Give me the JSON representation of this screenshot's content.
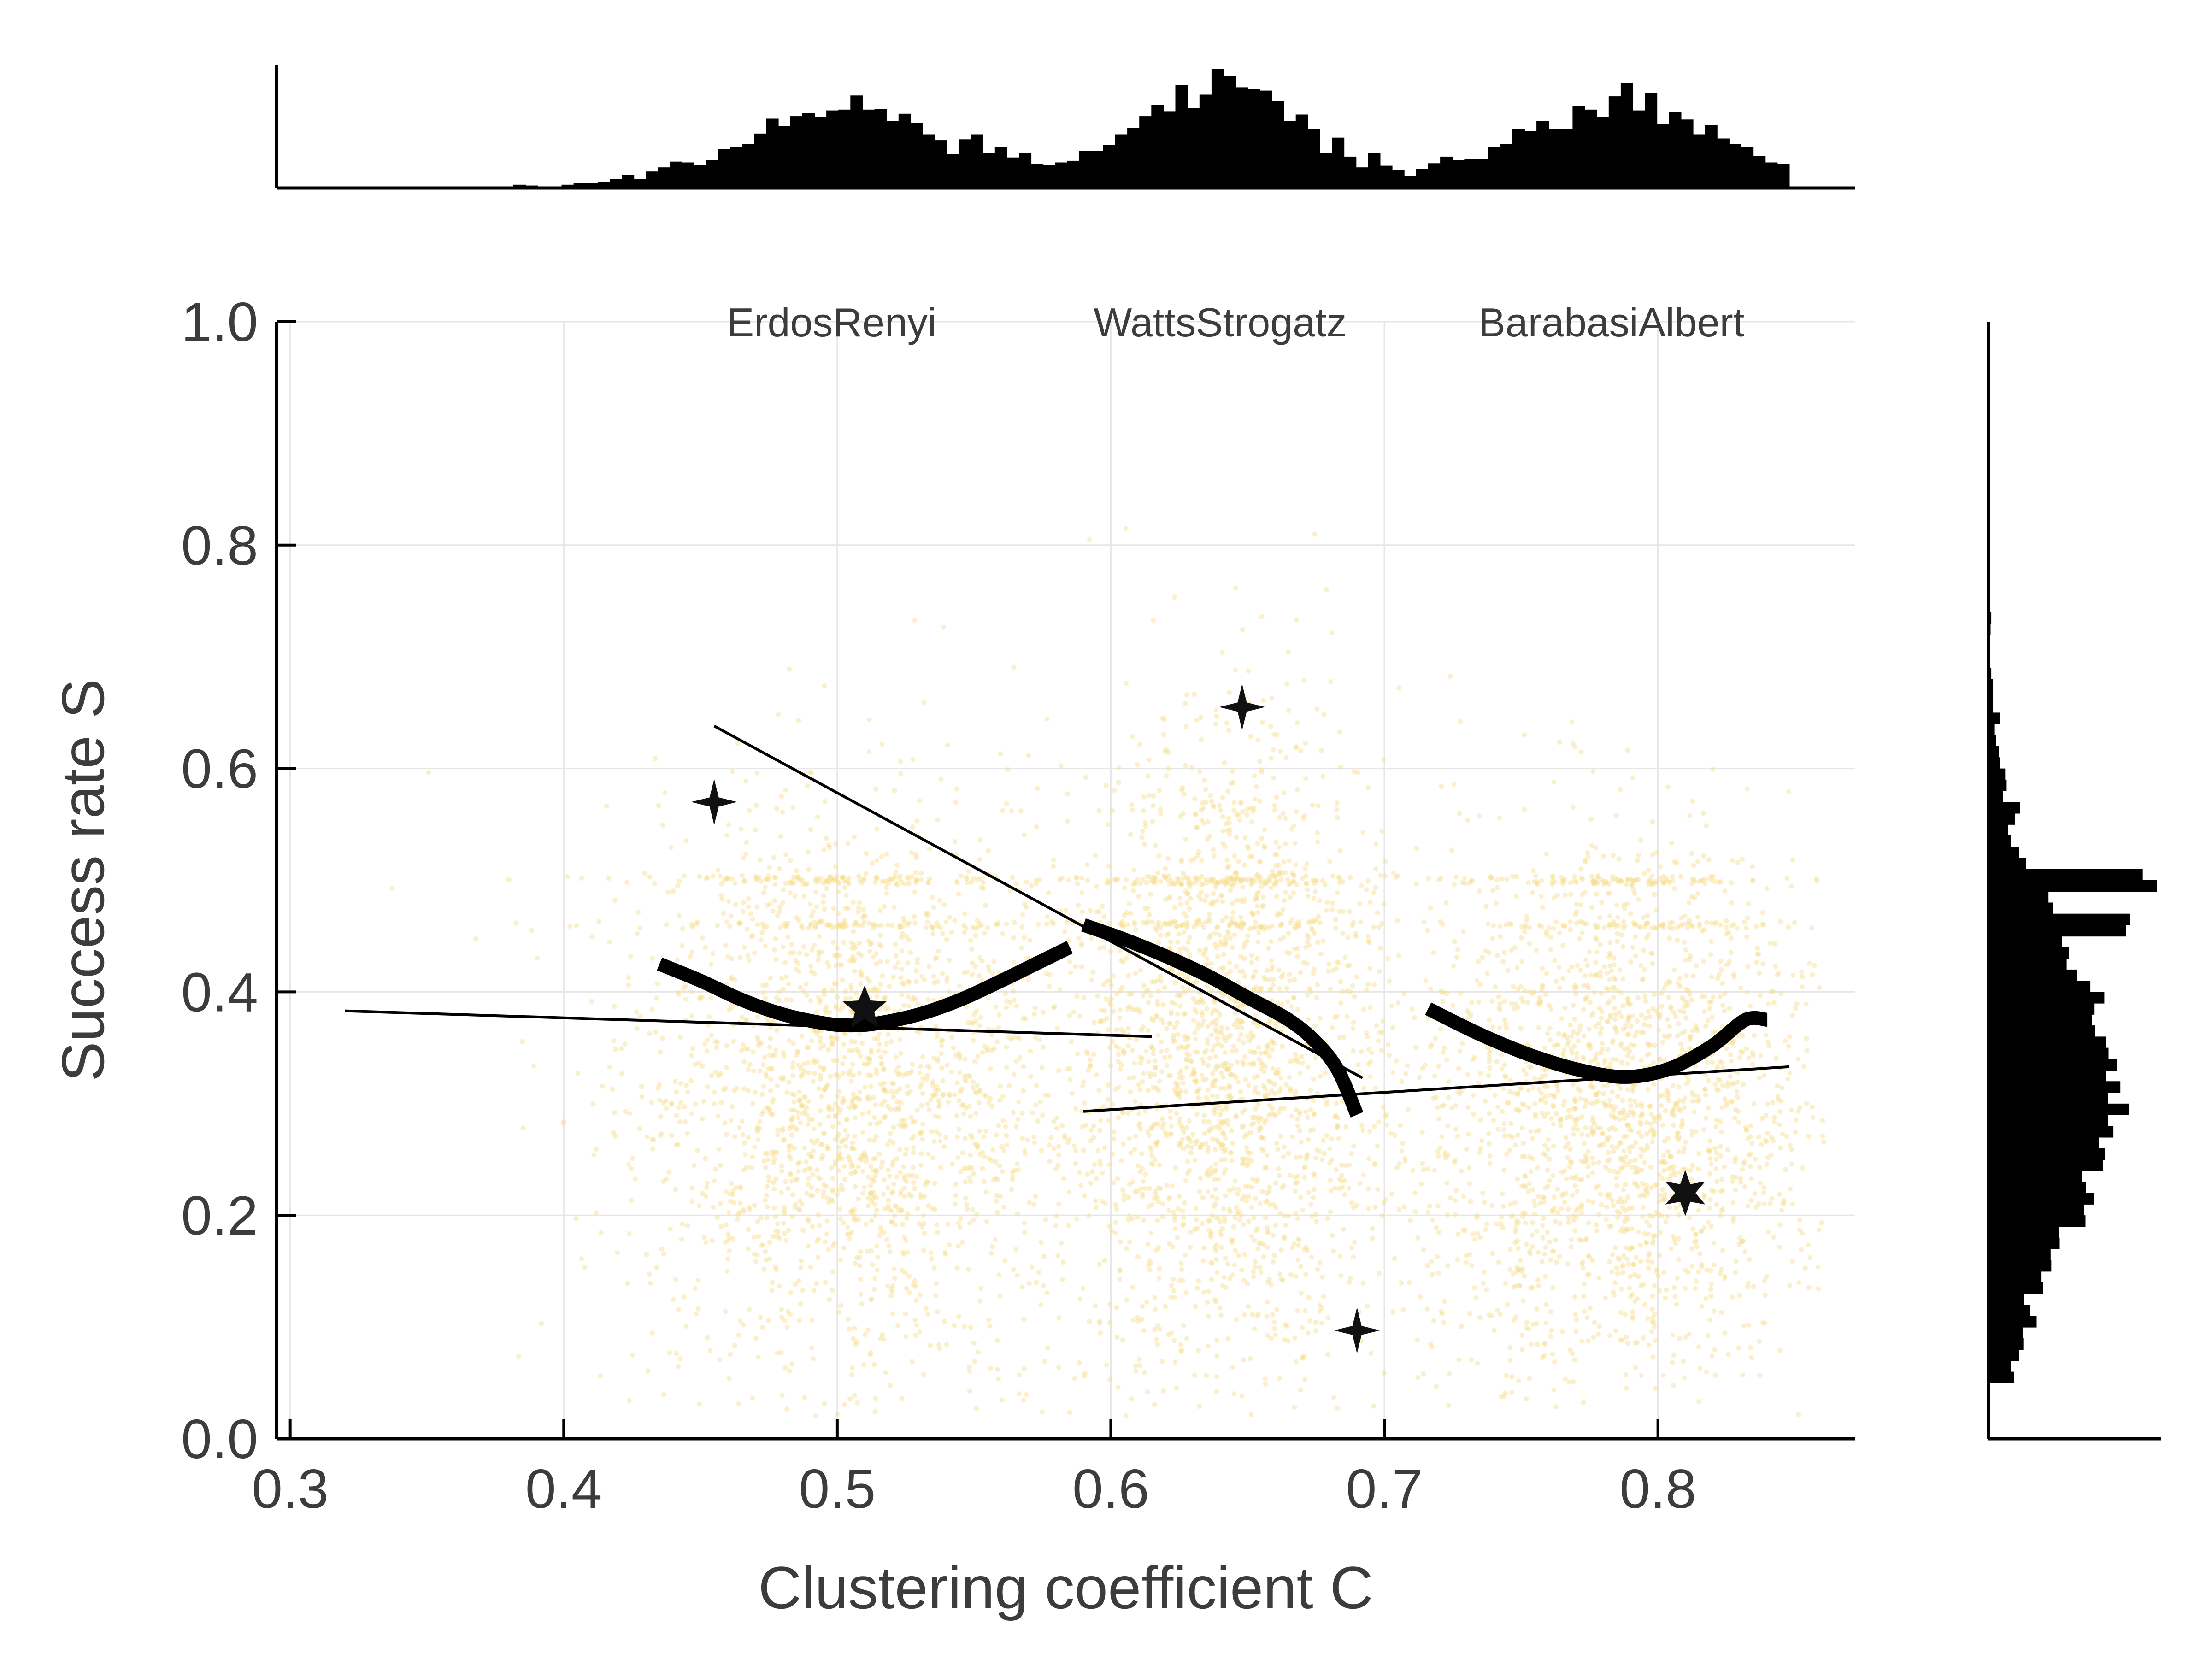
{
  "chart_data": {
    "type": "scatter",
    "title": "",
    "xlabel": "Clustering coefficient C",
    "ylabel": "Success rate S",
    "xlim": [
      0.295,
      0.872
    ],
    "ylim": [
      0.0,
      1.0
    ],
    "x_ticks": [
      0.3,
      0.4,
      0.5,
      0.6,
      0.7,
      0.8
    ],
    "x_tick_labels": [
      "0.3",
      "0.4",
      "0.5",
      "0.6",
      "0.7",
      "0.8"
    ],
    "y_ticks": [
      0.0,
      0.2,
      0.4,
      0.6,
      0.8,
      1.0
    ],
    "y_tick_labels": [
      "0.0",
      "0.2",
      "0.4",
      "0.6",
      "0.8",
      "1.0"
    ],
    "grid": true,
    "point_color": "#f7de8c",
    "line_color": "#000000",
    "clusters": [
      {
        "label": "ErdosRenyi",
        "label_x": 0.498,
        "center_x": 0.505,
        "spread_x": 0.04,
        "center_y": 0.31,
        "spread_y": 0.13
      },
      {
        "label": "WattsStrogatz",
        "label_x": 0.64,
        "center_x": 0.642,
        "spread_x": 0.03,
        "center_y": 0.34,
        "spread_y": 0.15
      },
      {
        "label": "BarabasiAlbert",
        "label_x": 0.783,
        "center_x": 0.785,
        "spread_x": 0.037,
        "center_y": 0.29,
        "spread_y": 0.12
      }
    ],
    "smooth_curves": [
      {
        "x": [
          0.435,
          0.45,
          0.465,
          0.48,
          0.495,
          0.505,
          0.515,
          0.53,
          0.545,
          0.56,
          0.575,
          0.585
        ],
        "y": [
          0.425,
          0.41,
          0.393,
          0.38,
          0.372,
          0.37,
          0.372,
          0.38,
          0.393,
          0.41,
          0.428,
          0.44
        ]
      },
      {
        "x": [
          0.59,
          0.605,
          0.62,
          0.635,
          0.65,
          0.665,
          0.675,
          0.683,
          0.69
        ],
        "y": [
          0.46,
          0.447,
          0.432,
          0.415,
          0.395,
          0.375,
          0.355,
          0.33,
          0.29
        ]
      },
      {
        "x": [
          0.716,
          0.735,
          0.755,
          0.775,
          0.79,
          0.805,
          0.82,
          0.832,
          0.84
        ],
        "y": [
          0.385,
          0.362,
          0.342,
          0.328,
          0.324,
          0.332,
          0.352,
          0.375,
          0.375
        ]
      }
    ],
    "regression_lines": [
      {
        "x": [
          0.32,
          0.615
        ],
        "y": [
          0.383,
          0.36
        ]
      },
      {
        "x": [
          0.455,
          0.692
        ],
        "y": [
          0.638,
          0.323
        ]
      },
      {
        "x": [
          0.59,
          0.848
        ],
        "y": [
          0.293,
          0.333
        ]
      }
    ],
    "star_markers": [
      {
        "x": 0.455,
        "y": 0.57,
        "shape": "4-point"
      },
      {
        "x": 0.51,
        "y": 0.385,
        "shape": "5-point"
      },
      {
        "x": 0.648,
        "y": 0.655,
        "shape": "4-point"
      },
      {
        "x": 0.69,
        "y": 0.097,
        "shape": "4-point"
      },
      {
        "x": 0.81,
        "y": 0.22,
        "shape": "6-point"
      }
    ],
    "top_histogram": {
      "bin_min": 0.32,
      "bin_max": 0.848,
      "bins": 120,
      "axis": "x"
    },
    "right_histogram": {
      "bin_min": 0.05,
      "bin_max": 0.95,
      "bins": 90,
      "axis": "y"
    }
  }
}
